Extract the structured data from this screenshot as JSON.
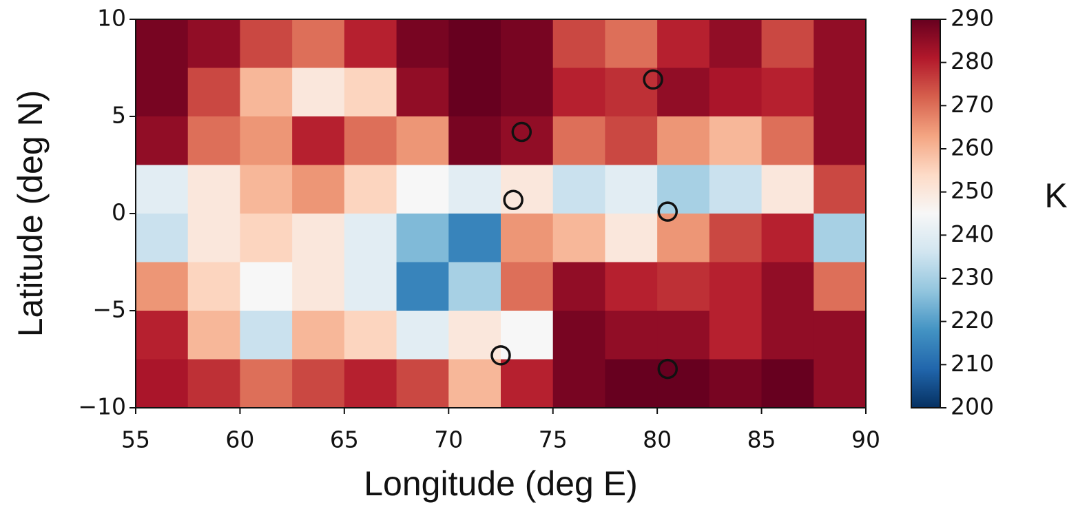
{
  "chart_data": {
    "type": "heatmap",
    "x_label": "Longitude (deg E)",
    "y_label": "Latitude (deg N)",
    "colorbar_label": "K",
    "colormap": "RdBu_r",
    "x": [
      56.25,
      58.75,
      61.25,
      63.75,
      66.25,
      68.75,
      71.25,
      73.75,
      76.25,
      78.75,
      81.25,
      83.75,
      86.25,
      88.75
    ],
    "y": [
      8.75,
      6.25,
      3.75,
      1.25,
      -1.25,
      -3.75,
      -6.25,
      -8.75
    ],
    "z": [
      [
        288,
        285,
        275,
        270,
        280,
        288,
        290,
        288,
        275,
        270,
        280,
        285,
        275,
        285
      ],
      [
        288,
        275,
        260,
        250,
        255,
        285,
        290,
        288,
        280,
        278,
        285,
        282,
        280,
        285
      ],
      [
        285,
        270,
        265,
        280,
        270,
        265,
        288,
        285,
        270,
        275,
        265,
        260,
        270,
        285
      ],
      [
        240,
        250,
        260,
        265,
        255,
        245,
        240,
        250,
        235,
        240,
        230,
        235,
        250,
        275
      ],
      [
        235,
        250,
        255,
        250,
        240,
        225,
        215,
        265,
        260,
        250,
        265,
        275,
        280,
        230
      ],
      [
        265,
        255,
        245,
        250,
        240,
        215,
        230,
        270,
        285,
        280,
        278,
        280,
        285,
        270
      ],
      [
        280,
        260,
        235,
        260,
        255,
        240,
        250,
        245,
        288,
        285,
        285,
        280,
        285,
        285
      ],
      [
        282,
        278,
        270,
        275,
        280,
        275,
        260,
        280,
        288,
        290,
        290,
        288,
        290,
        285
      ]
    ],
    "xlim": [
      55,
      90
    ],
    "ylim": [
      -10,
      10
    ],
    "xticks": [
      55,
      60,
      65,
      70,
      75,
      80,
      85,
      90
    ],
    "yticks": [
      {
        "value": -10,
        "label": "−10"
      },
      {
        "value": -5,
        "label": "−5"
      },
      0,
      5,
      10
    ],
    "clim": [
      200,
      290
    ],
    "cticks": [
      200,
      210,
      220,
      230,
      240,
      250,
      260,
      270,
      280,
      290
    ],
    "markers": {
      "x": [
        79.8,
        73.5,
        73.1,
        80.5,
        72.5,
        80.5
      ],
      "y": [
        6.9,
        4.2,
        0.7,
        0.1,
        -7.3,
        -8.0
      ],
      "color": "#111111"
    }
  }
}
